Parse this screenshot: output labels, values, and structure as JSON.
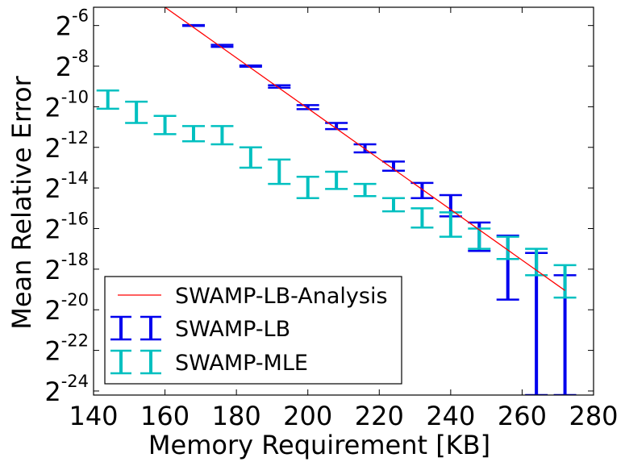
{
  "chart_data": {
    "type": "errorbar",
    "title": "",
    "xlabel": "Memory Requirement [KB]",
    "ylabel": "Mean Relative Error",
    "xlim": [
      140,
      280
    ],
    "ylim_log2": [
      -24.2,
      -5.1
    ],
    "x_ticks": [
      140,
      160,
      180,
      200,
      220,
      240,
      260,
      280
    ],
    "y_ticks_exponents": [
      -6,
      -8,
      -10,
      -12,
      -14,
      -16,
      -18,
      -20,
      -22,
      -24
    ],
    "y_tick_base": "2",
    "legend_position": "lower-left",
    "colors": {
      "analysis": "#ff0000",
      "lb": "#0000ee",
      "mle": "#00c0c0",
      "axes": "#000000"
    },
    "series": [
      {
        "name": "SWAMP-LB-Analysis",
        "kind": "line",
        "color": "#ff0000",
        "x": [
          160,
          272
        ],
        "y_log2": [
          -5.1,
          -19.05
        ]
      },
      {
        "name": "SWAMP-LB",
        "kind": "errorbar",
        "color": "#0000ee",
        "points": [
          {
            "x": 168,
            "low_log2": -6.02,
            "high_log2": -5.98
          },
          {
            "x": 176,
            "low_log2": -7.05,
            "high_log2": -6.95
          },
          {
            "x": 184,
            "low_log2": -8.03,
            "high_log2": -7.97
          },
          {
            "x": 192,
            "low_log2": -9.06,
            "high_log2": -8.94
          },
          {
            "x": 200,
            "low_log2": -10.12,
            "high_log2": -9.92
          },
          {
            "x": 208,
            "low_log2": -11.1,
            "high_log2": -10.8
          },
          {
            "x": 216,
            "low_log2": -12.25,
            "high_log2": -11.85
          },
          {
            "x": 224,
            "low_log2": -13.15,
            "high_log2": -12.7
          },
          {
            "x": 232,
            "low_log2": -14.5,
            "high_log2": -13.75
          },
          {
            "x": 240,
            "low_log2": -15.4,
            "high_log2": -14.35
          },
          {
            "x": 248,
            "low_log2": -17.1,
            "high_log2": -15.7
          },
          {
            "x": 256,
            "low_log2": -19.5,
            "high_log2": -16.35
          },
          {
            "x": 264,
            "low_log2": -24.2,
            "high_log2": -17.2
          },
          {
            "x": 272,
            "low_log2": -24.2,
            "high_log2": -18.3
          }
        ]
      },
      {
        "name": "SWAMP-MLE",
        "kind": "errorbar",
        "color": "#00c0c0",
        "points": [
          {
            "x": 144,
            "low_log2": -10.1,
            "high_log2": -9.2
          },
          {
            "x": 152,
            "low_log2": -10.8,
            "high_log2": -9.75
          },
          {
            "x": 160,
            "low_log2": -11.35,
            "high_log2": -10.45
          },
          {
            "x": 168,
            "low_log2": -11.7,
            "high_log2": -10.95
          },
          {
            "x": 176,
            "low_log2": -11.85,
            "high_log2": -10.95
          },
          {
            "x": 184,
            "low_log2": -13.0,
            "high_log2": -12.0
          },
          {
            "x": 192,
            "low_log2": -13.8,
            "high_log2": -12.6
          },
          {
            "x": 200,
            "low_log2": -14.5,
            "high_log2": -13.45
          },
          {
            "x": 208,
            "low_log2": -14.05,
            "high_log2": -13.2
          },
          {
            "x": 216,
            "low_log2": -14.4,
            "high_log2": -13.8
          },
          {
            "x": 224,
            "low_log2": -15.15,
            "high_log2": -14.5
          },
          {
            "x": 232,
            "low_log2": -15.95,
            "high_log2": -15.0
          },
          {
            "x": 240,
            "low_log2": -16.4,
            "high_log2": -15.2
          },
          {
            "x": 248,
            "low_log2": -17.0,
            "high_log2": -16.0
          },
          {
            "x": 256,
            "low_log2": -17.5,
            "high_log2": -16.4
          },
          {
            "x": 264,
            "low_log2": -18.3,
            "high_log2": -17.0
          },
          {
            "x": 272,
            "low_log2": -19.4,
            "high_log2": -17.8
          }
        ]
      }
    ]
  }
}
